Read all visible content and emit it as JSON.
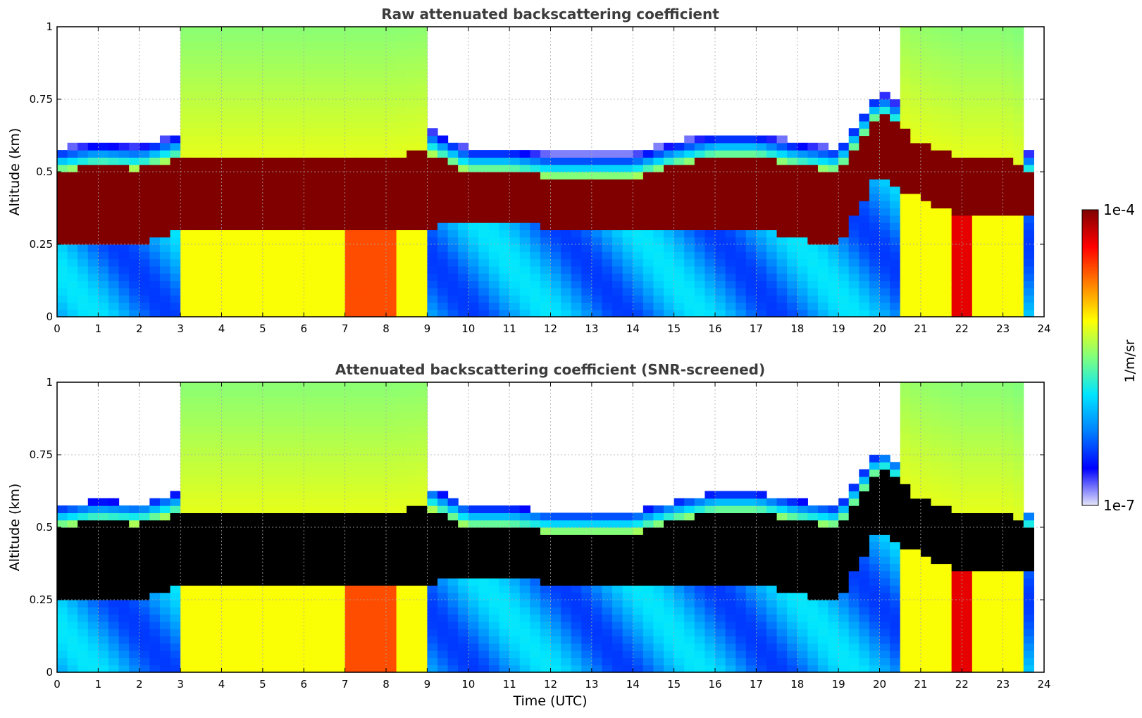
{
  "chart_data": [
    {
      "type": "heatmap",
      "title": "Raw attenuated backscattering coefficient",
      "xlabel": "",
      "ylabel": "Altitude (km)",
      "xlim": [
        0,
        24
      ],
      "ylim": [
        0,
        1
      ],
      "xticks": [
        "0",
        "1",
        "2",
        "3",
        "4",
        "5",
        "6",
        "7",
        "8",
        "9",
        "10",
        "11",
        "12",
        "13",
        "14",
        "15",
        "16",
        "17",
        "18",
        "19",
        "20",
        "21",
        "22",
        "23",
        "24"
      ],
      "yticks": [
        {
          "v": 0,
          "label": "0"
        },
        {
          "v": 0.25,
          "label": "0.25"
        },
        {
          "v": 0.5,
          "label": "0.5"
        },
        {
          "v": 0.75,
          "label": "0.75"
        },
        {
          "v": 1,
          "label": "1"
        }
      ],
      "grid": true,
      "layer_top_km": [
        0.5,
        0.52,
        0.51,
        0.55,
        0.55,
        0.55,
        0.55,
        0.55,
        0.55,
        0.57,
        0.5,
        0.5,
        0.48,
        0.48,
        0.48,
        0.52,
        0.55,
        0.55,
        0.52,
        0.5,
        0.7,
        0.6,
        0.55,
        0.55,
        0.45
      ],
      "layer_bottom_km": [
        0.25,
        0.25,
        0.25,
        0.3,
        0.3,
        0.3,
        0.3,
        0.3,
        0.3,
        0.31,
        0.32,
        0.32,
        0.31,
        0.3,
        0.31,
        0.3,
        0.31,
        0.3,
        0.27,
        0.25,
        0.5,
        0.4,
        0.35,
        0.35,
        0.35
      ]
    },
    {
      "type": "heatmap",
      "title": "Attenuated backscattering coefficient (SNR-screened)",
      "xlabel": "Time (UTC)",
      "ylabel": "Altitude (km)",
      "xlim": [
        0,
        24
      ],
      "ylim": [
        0,
        1
      ],
      "xticks": [
        "0",
        "1",
        "2",
        "3",
        "4",
        "5",
        "6",
        "7",
        "8",
        "9",
        "10",
        "11",
        "12",
        "13",
        "14",
        "15",
        "16",
        "17",
        "18",
        "19",
        "20",
        "21",
        "22",
        "23",
        "24"
      ],
      "yticks": [
        {
          "v": 0,
          "label": "0"
        },
        {
          "v": 0.25,
          "label": "0.25"
        },
        {
          "v": 0.5,
          "label": "0.5"
        },
        {
          "v": 0.75,
          "label": "0.75"
        },
        {
          "v": 1,
          "label": "1"
        }
      ],
      "grid": true,
      "note": "saturated values above colour scale shown in black"
    }
  ],
  "colorbar": {
    "label": "1/m/sr",
    "max_label": "1e-4",
    "min_label": "1e-7",
    "colormap": [
      "#e6e6fa",
      "#0000ff",
      "#0080ff",
      "#00e5ff",
      "#7fff7f",
      "#ffff00",
      "#ff8000",
      "#ff0000",
      "#800000"
    ]
  }
}
